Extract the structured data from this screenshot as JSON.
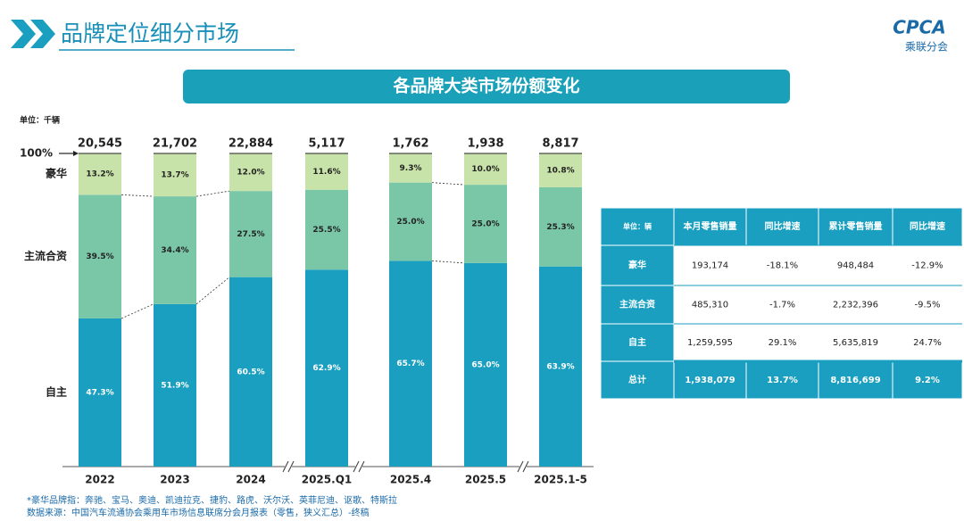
{
  "header": {
    "title": "品牌定位细分市场",
    "logo": "CPCA",
    "logo_sub": "乘联分会"
  },
  "chart_data": {
    "type": "bar",
    "stacked": true,
    "title": "各品牌大类市场份额变化",
    "unit": "单位：千辆",
    "categories": [
      "2022",
      "2023",
      "2024",
      "2025.Q1",
      "2025.4",
      "2025.5",
      "2025.1-5"
    ],
    "ylim": [
      0,
      100
    ],
    "yticks": [
      {
        "value": 100,
        "label": "100%"
      }
    ],
    "totals": {
      "values": [
        20545,
        21702,
        22884,
        5117,
        1762,
        1938,
        8817
      ],
      "value_labels": [
        "20,545",
        "21,702",
        "22,884",
        "5,117",
        "1,762",
        "1,938",
        "8,817"
      ]
    },
    "series": [
      {
        "name": "自主",
        "color": "#1b9fc0",
        "values": [
          47.3,
          51.9,
          60.5,
          62.9,
          65.7,
          65,
          63.9
        ],
        "value_labels": [
          "47.3%",
          "51.9%",
          "60.5%",
          "62.9%",
          "65.7%",
          "65.0%",
          "63.9%"
        ]
      },
      {
        "name": "主流合资",
        "color": "#7ac7a8",
        "values": [
          39.5,
          34.4,
          27.5,
          25.5,
          25,
          25,
          25.3
        ],
        "value_labels": [
          "39.5%",
          "34.4%",
          "27.5%",
          "25.5%",
          "25.0%",
          "25.0%",
          "25.3%"
        ]
      },
      {
        "name": "豪华",
        "color": "#c7e3a9",
        "values": [
          13.2,
          13.7,
          12,
          11.6,
          9.3,
          10,
          10.8
        ],
        "value_labels": [
          "13.2%",
          "13.7%",
          "12.0%",
          "11.6%",
          "9.3%",
          "10.0%",
          "10.8%"
        ]
      }
    ]
  },
  "table": {
    "header": [
      "单位：辆",
      "本月零售销量",
      "同比增速",
      "累计零售销量",
      "同比增速"
    ],
    "rows": [
      [
        "豪华",
        "193,174",
        "-18.1%",
        "948,484",
        "-12.9%"
      ],
      [
        "主流合资",
        "485,310",
        "-1.7%",
        "2,232,396",
        "-9.5%"
      ],
      [
        "自主",
        "1,259,595",
        "29.1%",
        "5,635,819",
        "24.7%"
      ],
      [
        "总计",
        "1,938,079",
        "13.7%",
        "8,816,699",
        "9.2%"
      ]
    ]
  },
  "footnotes": [
    "*豪华品牌指：奔驰、宝马、奥迪、凯迪拉克、捷豹、路虎、沃尔沃、英菲尼迪、讴歌、特斯拉",
    "数据来源：中国汽车流通协会乘用车市场信息联席分会月报表（零售，狭义汇总）-终稿"
  ]
}
